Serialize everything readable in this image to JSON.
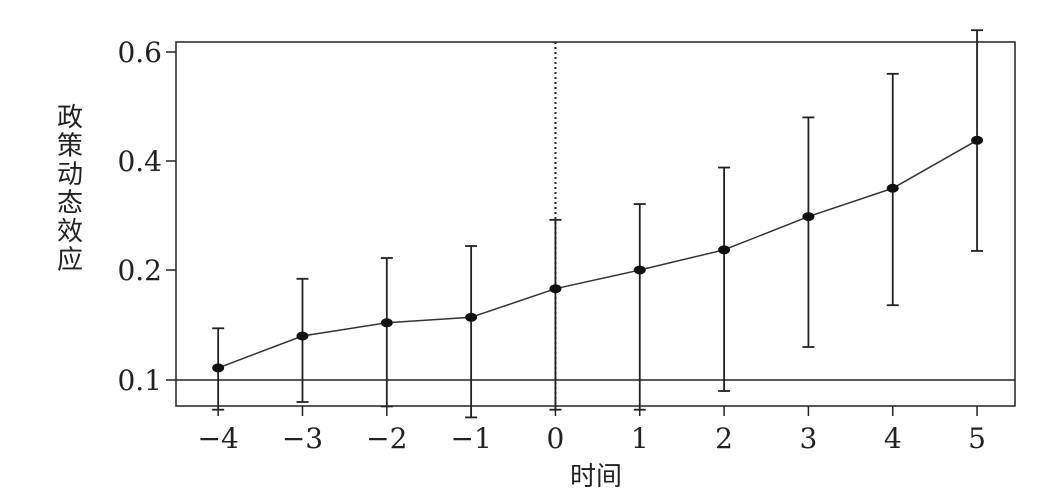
{
  "chart_data": {
    "type": "line",
    "title": "",
    "xlabel": "时间",
    "ylabel": "政策动态效应",
    "x": [
      -4,
      -3,
      -2,
      -1,
      0,
      1,
      2,
      3,
      4,
      5
    ],
    "x_tick_labels": [
      "−4",
      "−3",
      "−2",
      "−1",
      "0",
      "1",
      "2",
      "3",
      "4",
      "5"
    ],
    "y_ticks": [
      0.1,
      0.2,
      0.4,
      0.6
    ],
    "y_tick_labels": [
      "0.1",
      "0.2",
      "0.4",
      "0.6"
    ],
    "series": [
      {
        "values": [
          0.111,
          0.14,
          0.152,
          0.157,
          0.183,
          0.2,
          0.237,
          0.298,
          0.35,
          0.438
        ],
        "lower": [
          0.073,
          0.08,
          0.076,
          0.066,
          0.073,
          0.073,
          0.09,
          0.13,
          0.168,
          0.235
        ],
        "upper": [
          0.147,
          0.192,
          0.222,
          0.244,
          0.292,
          0.321,
          0.388,
          0.48,
          0.56,
          0.64
        ]
      }
    ],
    "reference_lines": [
      {
        "axis": "y",
        "value": 0.1,
        "style": "solid"
      },
      {
        "axis": "x",
        "value": 0,
        "style": "dotted"
      }
    ],
    "xlim": [
      -4.5,
      5.45
    ],
    "ylim": [
      0.05,
      0.67
    ],
    "grid": false,
    "legend": "none"
  }
}
